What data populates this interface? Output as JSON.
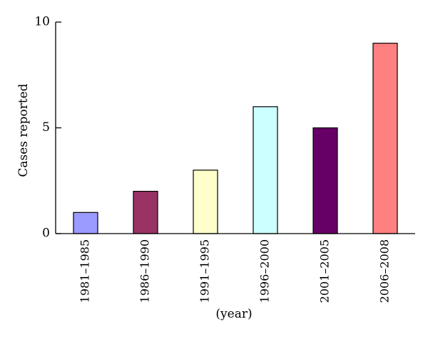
{
  "chart_data": {
    "type": "bar",
    "categories": [
      "1981–1985",
      "1986–1990",
      "1991–1995",
      "1996–2000",
      "2001–2005",
      "2006–2008"
    ],
    "values": [
      1,
      2,
      3,
      6,
      5,
      9
    ],
    "colors": [
      "#9a9aff",
      "#993366",
      "#ffffcc",
      "#ccffff",
      "#660066",
      "#ff8080"
    ],
    "title": "",
    "xlabel": "(year)",
    "ylabel": "Cases reported",
    "ylim": [
      0,
      10
    ],
    "yticks": [
      0,
      5,
      10
    ],
    "grid": false,
    "legend": "none"
  }
}
